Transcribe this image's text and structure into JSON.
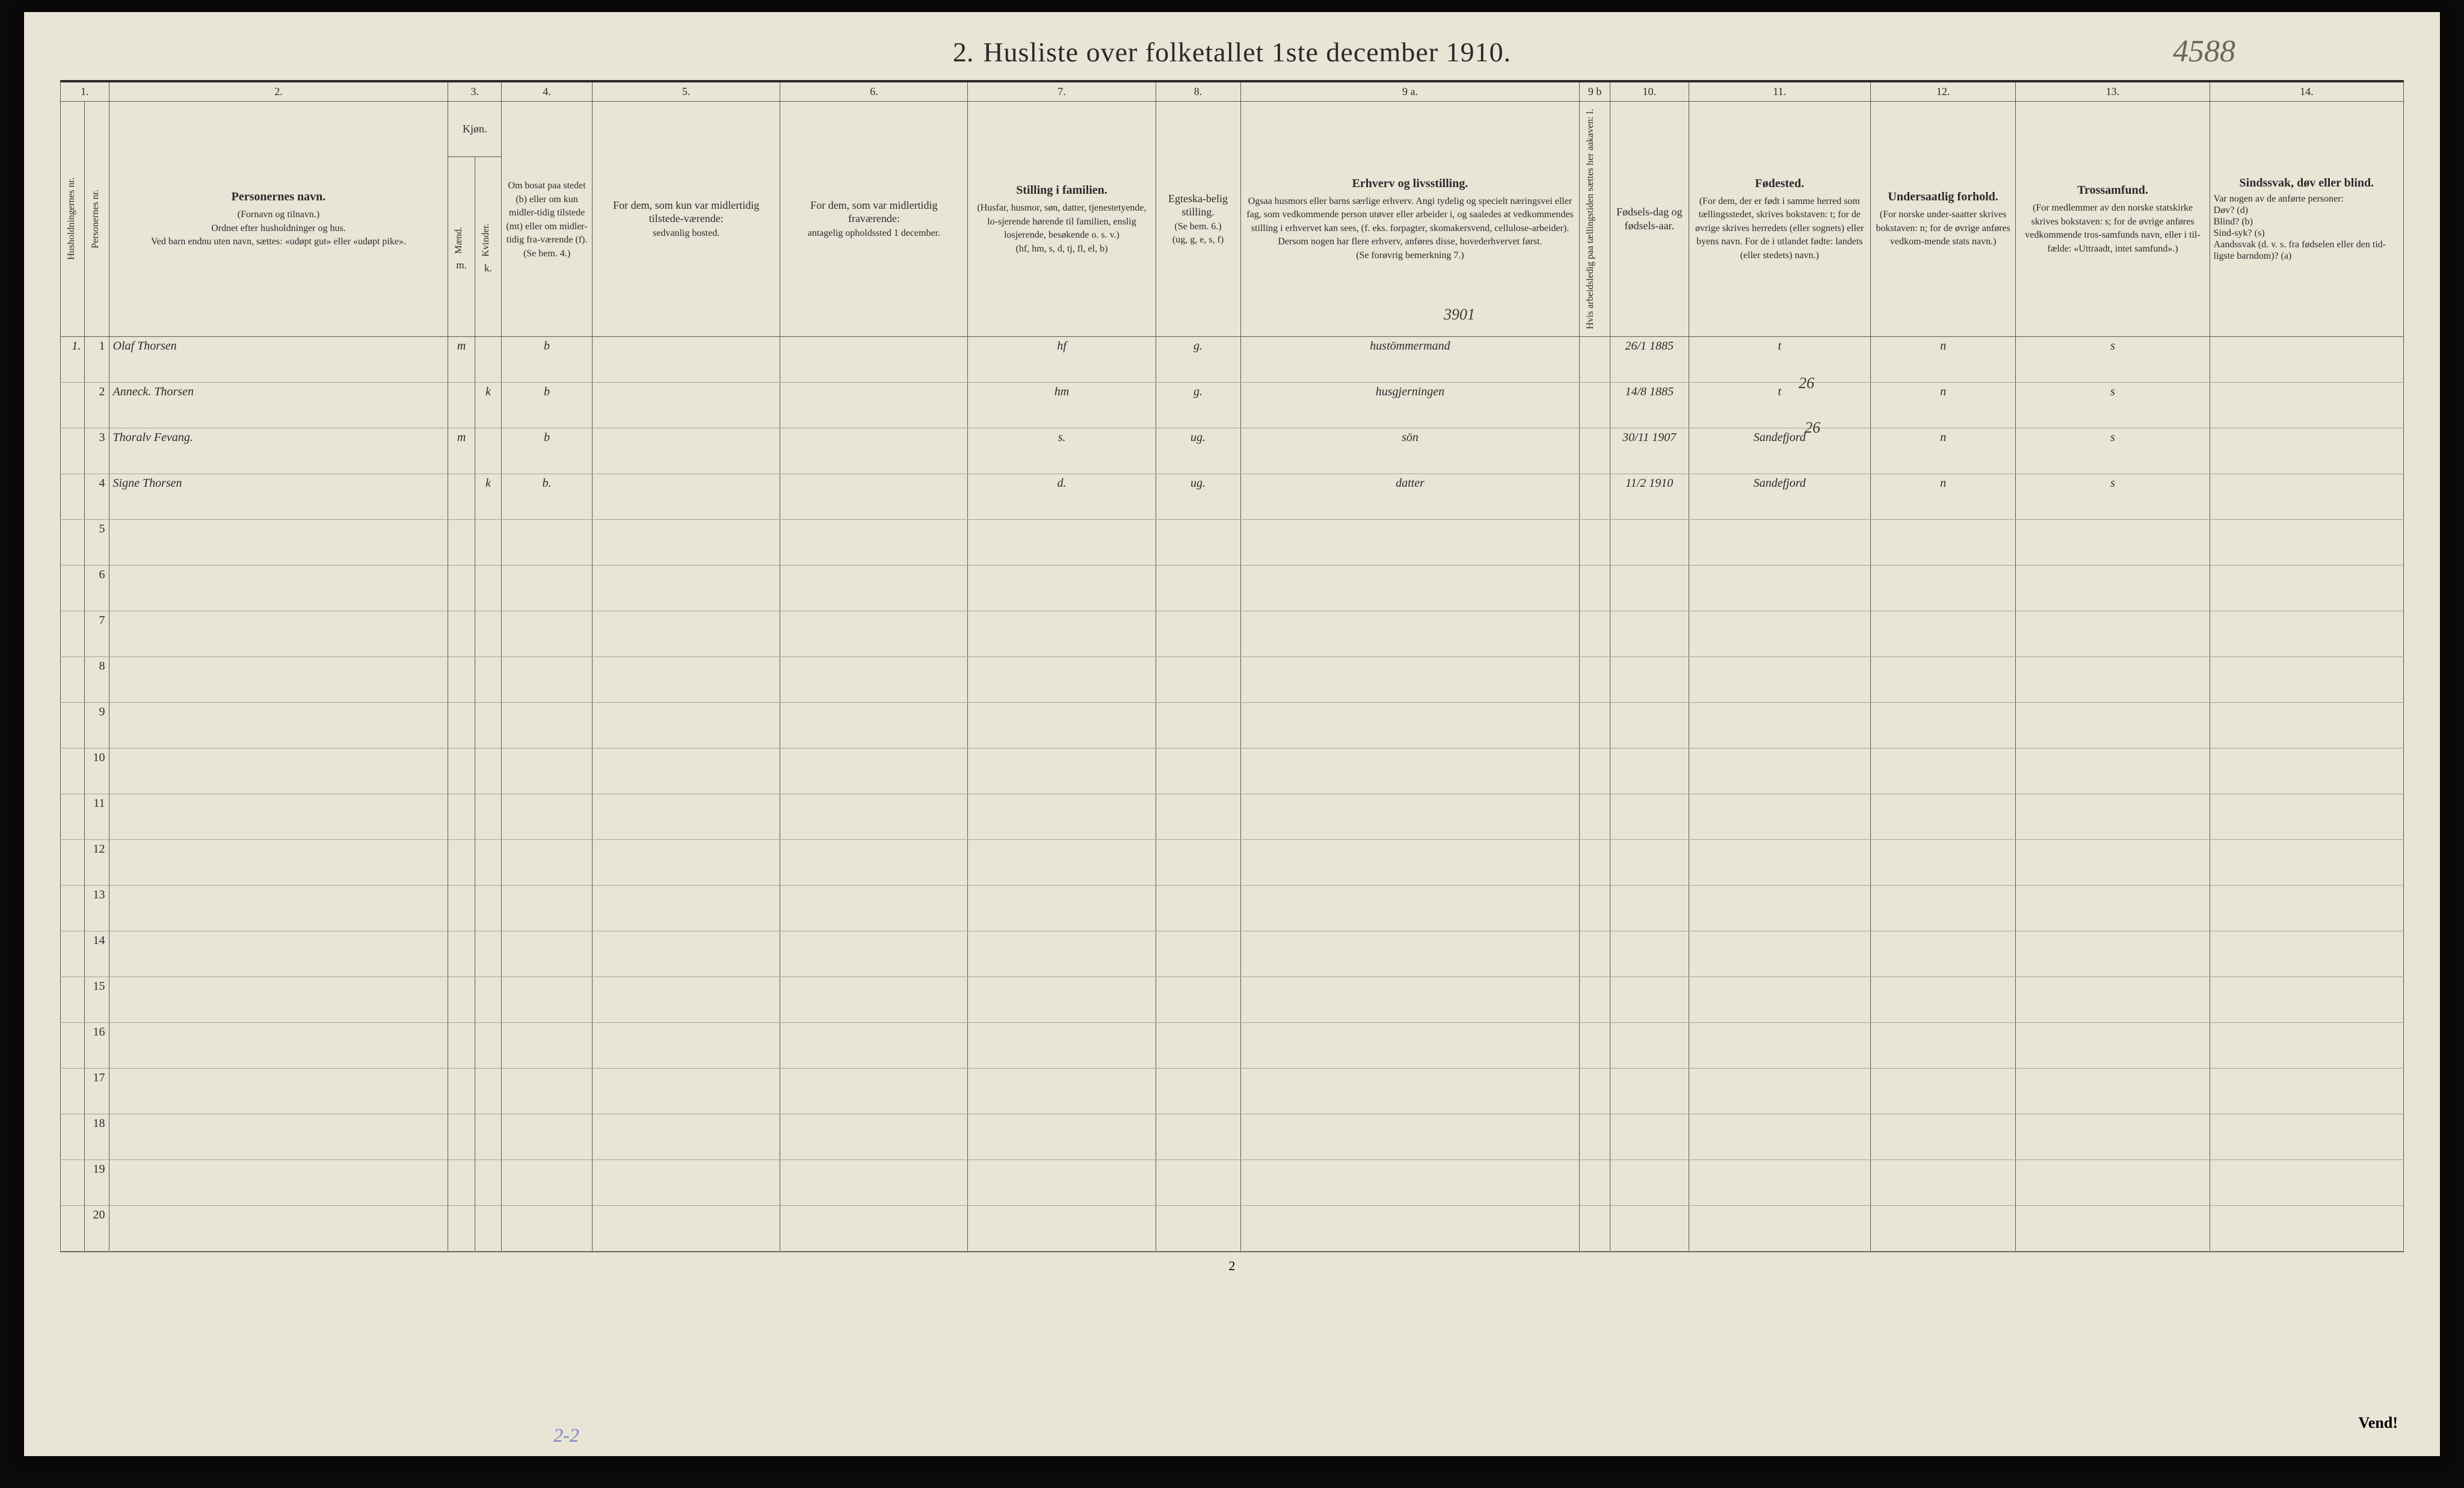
{
  "title_prefix": "2.",
  "title": "Husliste over folketallet 1ste december 1910.",
  "handwritten_id": "4588",
  "col_numbers": [
    "1.",
    "2.",
    "3.",
    "4.",
    "5.",
    "6.",
    "7.",
    "8.",
    "9 a.",
    "9 b",
    "10.",
    "11.",
    "12.",
    "13.",
    "14."
  ],
  "headers": {
    "c1a": "Husholdningernes nr.",
    "c1b": "Personernes nr.",
    "c2_main": "Personernes navn.",
    "c2_sub": "(Fornavn og tilnavn.)\nOrdnet efter husholdninger og hus.\nVed barn endnu uten navn, sættes: «udøpt gut» eller «udøpt pike».",
    "c3_top": "Kjøn.",
    "c3a": "Mænd.",
    "c3b": "Kvinder.",
    "c3_foot": "m.   k.",
    "c4_top": "Om bosat paa stedet (b) eller om kun midler-tidig tilstede (mt) eller om midler-tidig fra-værende (f).",
    "c4_foot": "(Se bem. 4.)",
    "c5": "For dem, som kun var midlertidig tilstede-værende:",
    "c5_sub": "sedvanlig bosted.",
    "c6": "For dem, som var midlertidig fraværende:",
    "c6_sub": "antagelig opholdssted 1 december.",
    "c7_top": "Stilling i familien.",
    "c7_sub": "(Husfar, husmor, søn, datter, tjenestetyende, lo-sjerende hørende til familien, enslig losjerende, besøkende o. s. v.)",
    "c7_foot": "(hf, hm, s, d, tj, fl, el, b)",
    "c8_top": "Egteska-belig stilling.",
    "c8_sub": "(Se bem. 6.)",
    "c8_foot": "(ug, g, e, s, f)",
    "c9a_top": "Erhverv og livsstilling.",
    "c9a_sub": "Ogsaa husmors eller barns særlige erhverv. Angi tydelig og specielt næringsvei eller fag, som vedkommende person utøver eller arbeider i, og saaledes at vedkommendes stilling i erhvervet kan sees, (f. eks. forpagter, skomakersvend, cellulose-arbeider). Dersom nogen har flere erhverv, anføres disse, hovederhvervet først.",
    "c9a_foot": "(Se forøvrig bemerkning 7.)",
    "c9b": "Hvis arbeidsledig paa tællingstiden sættes her aakaven: l.",
    "c10_top": "Fødsels-dag og fødsels-aar.",
    "c11_top": "Fødested.",
    "c11_sub": "(For dem, der er født i samme herred som tællingsstedet, skrives bokstaven: t; for de øvrige skrives herredets (eller sognets) eller byens navn. For de i utlandet fødte: landets (eller stedets) navn.)",
    "c12_top": "Undersaatlig forhold.",
    "c12_sub": "(For norske under-saatter skrives bokstaven: n; for de øvrige anføres vedkom-mende stats navn.)",
    "c13_top": "Trossamfund.",
    "c13_sub": "(For medlemmer av den norske statskirke skrives bokstaven: s; for de øvrige anføres vedkommende tros-samfunds navn, eller i til-fælde: «Uttraadt, intet samfund».)",
    "c14_top": "Sindssvak, døv eller blind.",
    "c14_sub": "Var nogen av de anførte personer:\nDøv?      (d)\nBlind?    (b)\nSind-syk? (s)\nAandssvak (d. v. s. fra fødselen eller den tid-ligste barndom)? (a)"
  },
  "annot_3901": "3901",
  "annot_26a": "26",
  "annot_26b": "26",
  "rows": [
    {
      "hnr": "1.",
      "pnr": "1",
      "name": "Olaf Thorsen",
      "sex": "m",
      "res": "b",
      "c5": "",
      "c6": "",
      "fam": "hf",
      "mar": "g.",
      "occ": "hustömmermand",
      "dob": "26/1 1885",
      "birthplace": "t",
      "nat": "n",
      "rel": "s",
      "c14": ""
    },
    {
      "hnr": "",
      "pnr": "2",
      "name": "Anneck. Thorsen",
      "sex": "k",
      "res": "b",
      "c5": "",
      "c6": "",
      "fam": "hm",
      "mar": "g.",
      "occ": "husgjerningen",
      "dob": "14/8 1885",
      "birthplace": "t",
      "nat": "n",
      "rel": "s",
      "c14": ""
    },
    {
      "hnr": "",
      "pnr": "3",
      "name": "Thoralv Fevang.",
      "sex": "m",
      "res": "b",
      "c5": "",
      "c6": "",
      "fam": "s.",
      "mar": "ug.",
      "occ": "sön",
      "dob": "30/11 1907",
      "birthplace": "Sandefjord",
      "nat": "n",
      "rel": "s",
      "c14": ""
    },
    {
      "hnr": "",
      "pnr": "4",
      "name": "Signe Thorsen",
      "sex": "k",
      "res": "b.",
      "c5": "",
      "c6": "",
      "fam": "d.",
      "mar": "ug.",
      "occ": "datter",
      "dob": "11/2 1910",
      "birthplace": "Sandefjord",
      "nat": "n",
      "rel": "s",
      "c14": ""
    }
  ],
  "empty_rows": [
    "5",
    "6",
    "7",
    "8",
    "9",
    "10",
    "11",
    "12",
    "13",
    "14",
    "15",
    "16",
    "17",
    "18",
    "19",
    "20"
  ],
  "footer_page": "2",
  "vend": "Vend!",
  "bottom_mark": "2-2",
  "colwidths": {
    "c1a": 40,
    "c1b": 40,
    "c2": 560,
    "c3a": 44,
    "c3b": 44,
    "c4": 150,
    "c5": 310,
    "c6": 310,
    "c7": 310,
    "c8": 140,
    "c9a": 560,
    "c9b": 50,
    "c10": 130,
    "c11": 300,
    "c12": 240,
    "c13": 320,
    "c14": 320
  },
  "colors": {
    "paper": "#e8e4d6",
    "ink": "#2a2a2a",
    "rule": "#5a5a4a",
    "rowline": "#a8a494",
    "handwriting": "#3a3a32",
    "blue": "#7a88c0"
  }
}
